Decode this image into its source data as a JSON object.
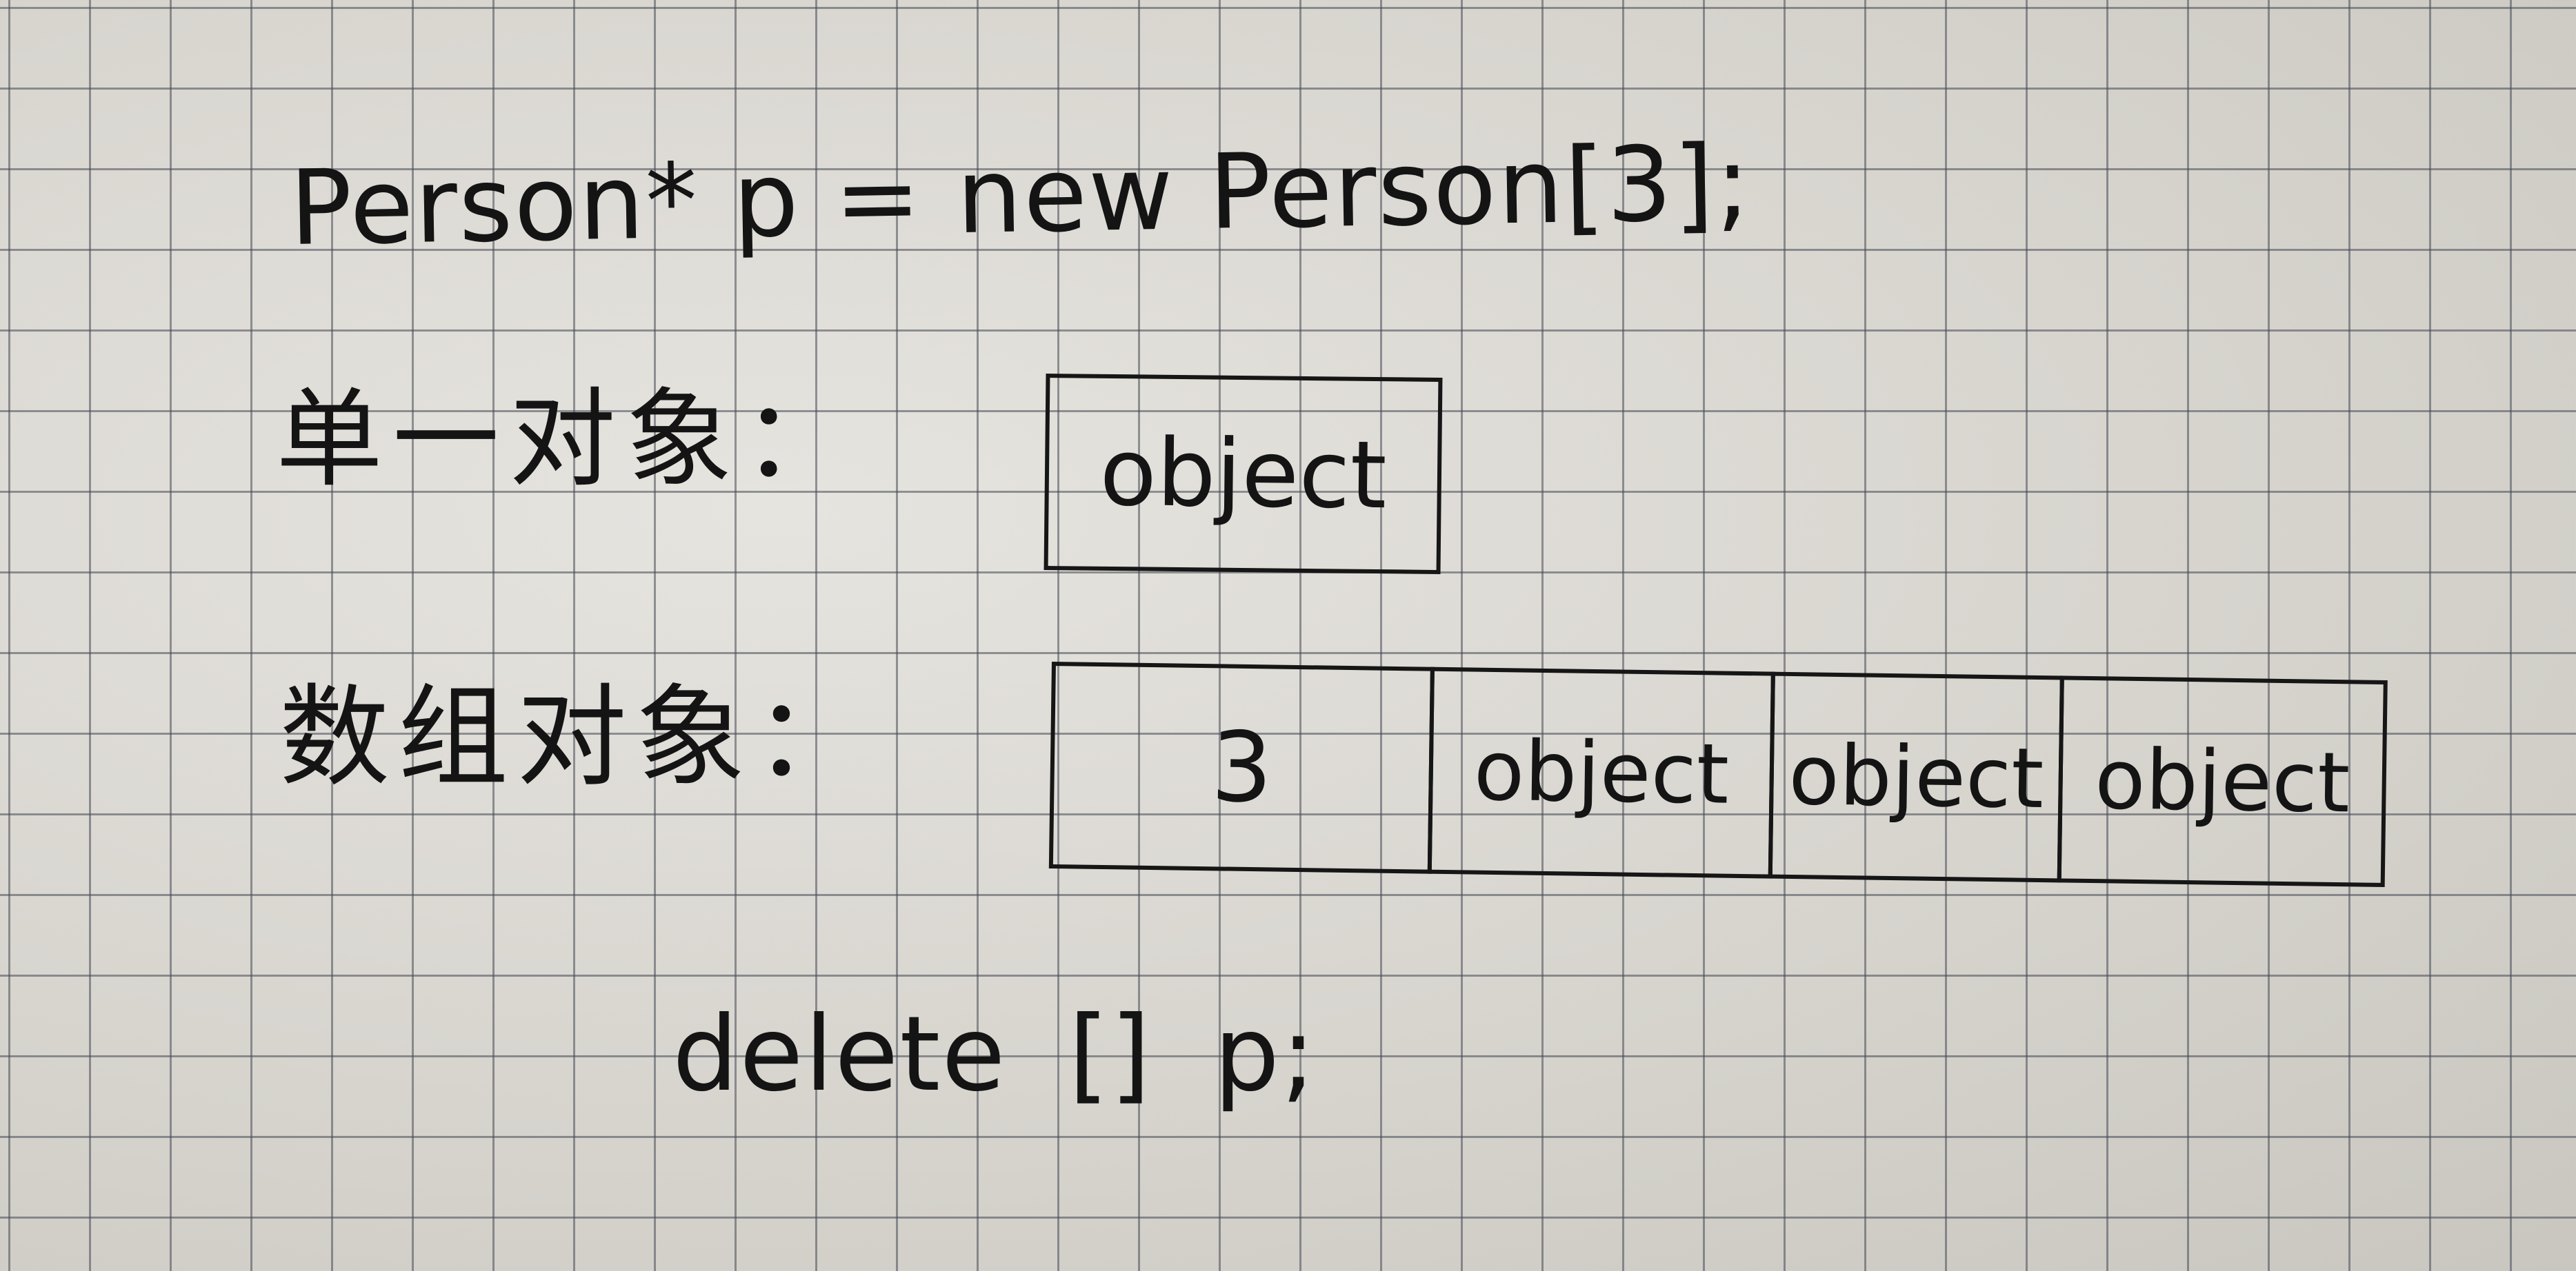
{
  "code_line": "Person* p = new Person[3];",
  "single_object": {
    "label": "单一对象：",
    "box_text": "object"
  },
  "array_object": {
    "label": "数组对象：",
    "cells": [
      "3",
      "object",
      "object",
      "object"
    ]
  },
  "delete_line": "delete [] p;"
}
